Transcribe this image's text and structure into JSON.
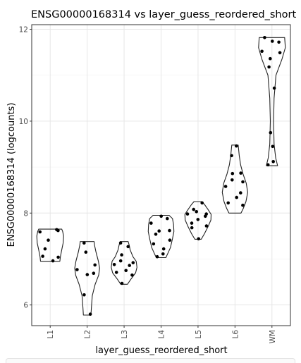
{
  "chart_data": {
    "type": "violin",
    "title": "ENSG00000168314 vs layer_guess_reordered_short",
    "xlabel": "layer_guess_reordered_short",
    "ylabel": "ENSG00000168314 (logcounts)",
    "ylim": [
      5.55,
      12.1
    ],
    "yticks": [
      6,
      8,
      10,
      12
    ],
    "grid": true,
    "categories": [
      "L1",
      "L2",
      "L3",
      "L4",
      "L5",
      "L6",
      "WM"
    ],
    "groups": [
      {
        "category": "L1",
        "points": [
          7.64,
          7.59,
          7.62,
          7.41,
          7.22,
          7.04,
          7.06,
          6.96
        ],
        "violin": {
          "min": 6.95,
          "max": 7.65,
          "profile": [
            [
              6.95,
              0.72
            ],
            [
              7.05,
              0.76
            ],
            [
              7.2,
              0.86
            ],
            [
              7.35,
              0.97
            ],
            [
              7.5,
              1.0
            ],
            [
              7.6,
              0.93
            ],
            [
              7.65,
              0.86
            ]
          ]
        }
      },
      {
        "category": "L2",
        "points": [
          7.35,
          7.15,
          6.87,
          6.77,
          6.69,
          6.66,
          6.22,
          5.8
        ],
        "violin": {
          "min": 5.78,
          "max": 7.38,
          "profile": [
            [
              5.78,
              0.28
            ],
            [
              5.95,
              0.32
            ],
            [
              6.2,
              0.38
            ],
            [
              6.45,
              0.6
            ],
            [
              6.65,
              0.86
            ],
            [
              6.8,
              0.93
            ],
            [
              6.95,
              0.84
            ],
            [
              7.15,
              0.66
            ],
            [
              7.3,
              0.55
            ],
            [
              7.38,
              0.52
            ]
          ]
        }
      },
      {
        "category": "L3",
        "points": [
          7.35,
          7.27,
          7.09,
          6.96,
          6.92,
          6.88,
          6.86,
          6.75,
          6.71,
          6.65,
          6.47
        ],
        "violin": {
          "min": 6.45,
          "max": 7.38,
          "profile": [
            [
              6.45,
              0.25
            ],
            [
              6.55,
              0.48
            ],
            [
              6.7,
              0.86
            ],
            [
              6.82,
              0.96
            ],
            [
              6.95,
              0.9
            ],
            [
              7.05,
              0.66
            ],
            [
              7.2,
              0.45
            ],
            [
              7.3,
              0.38
            ],
            [
              7.38,
              0.3
            ]
          ]
        }
      },
      {
        "category": "L4",
        "points": [
          7.93,
          7.88,
          7.78,
          7.62,
          7.61,
          7.54,
          7.41,
          7.33,
          7.22,
          7.11,
          7.05
        ],
        "violin": {
          "min": 7.03,
          "max": 7.95,
          "profile": [
            [
              7.03,
              0.36
            ],
            [
              7.12,
              0.5
            ],
            [
              7.25,
              0.7
            ],
            [
              7.45,
              0.86
            ],
            [
              7.6,
              0.96
            ],
            [
              7.75,
              0.93
            ],
            [
              7.88,
              0.85
            ],
            [
              7.95,
              0.6
            ]
          ]
        }
      },
      {
        "category": "L5",
        "points": [
          8.22,
          8.08,
          8.03,
          7.98,
          7.98,
          7.93,
          7.86,
          7.78,
          7.72,
          7.68,
          7.44
        ],
        "violin": {
          "min": 7.43,
          "max": 8.25,
          "profile": [
            [
              7.43,
              0.24
            ],
            [
              7.55,
              0.48
            ],
            [
              7.7,
              0.74
            ],
            [
              7.85,
              0.96
            ],
            [
              7.97,
              0.98
            ],
            [
              8.08,
              0.74
            ],
            [
              8.18,
              0.5
            ],
            [
              8.25,
              0.3
            ]
          ]
        }
      },
      {
        "category": "L6",
        "points": [
          9.46,
          9.25,
          8.87,
          8.86,
          8.72,
          8.68,
          8.58,
          8.44,
          8.34,
          8.22,
          8.17
        ],
        "violin": {
          "min": 8.0,
          "max": 9.48,
          "profile": [
            [
              8.0,
              0.45
            ],
            [
              8.1,
              0.62
            ],
            [
              8.25,
              0.82
            ],
            [
              8.45,
              0.95
            ],
            [
              8.65,
              0.84
            ],
            [
              8.85,
              0.6
            ],
            [
              9.05,
              0.42
            ],
            [
              9.25,
              0.32
            ],
            [
              9.48,
              0.24
            ]
          ]
        }
      },
      {
        "category": "WM",
        "points": [
          11.82,
          11.74,
          11.72,
          11.52,
          11.49,
          11.36,
          11.18,
          10.72,
          9.75,
          9.45,
          9.12,
          9.05
        ],
        "violin": {
          "min": 9.03,
          "max": 11.82,
          "profile": [
            [
              9.03,
              0.42
            ],
            [
              9.2,
              0.28
            ],
            [
              9.5,
              0.16
            ],
            [
              10.0,
              0.12
            ],
            [
              10.5,
              0.16
            ],
            [
              11.0,
              0.3
            ],
            [
              11.35,
              0.75
            ],
            [
              11.6,
              1.0
            ],
            [
              11.82,
              0.95
            ]
          ]
        }
      }
    ]
  }
}
